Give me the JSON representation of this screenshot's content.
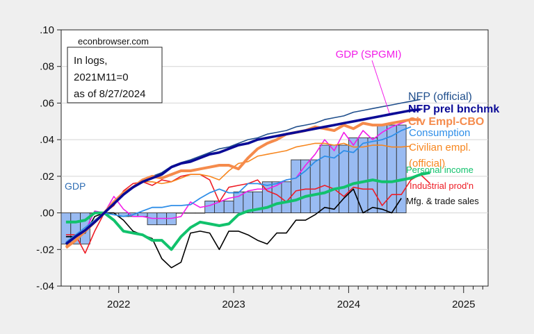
{
  "chart_data": {
    "type": "line",
    "title": "",
    "xlabel": "",
    "ylabel": "",
    "ylim": [
      -0.04,
      0.1
    ],
    "xlim": [
      "2021-07",
      "2025-03"
    ],
    "grid": true,
    "y_ticks": [
      ".10",
      ".08",
      ".06",
      ".04",
      ".02",
      ".00",
      "-.02",
      "-.04"
    ],
    "y_tick_values": [
      0.1,
      0.08,
      0.06,
      0.04,
      0.02,
      0.0,
      -0.02,
      -0.04
    ],
    "x_ticks": [
      "2022",
      "2023",
      "2024",
      "2025"
    ],
    "x_tick_months": [
      6,
      18,
      30,
      42
    ],
    "source_note": "econbrowser.com",
    "annotation_lines": [
      "In logs,",
      "2021M11=0",
      "as of 8/27/2024"
    ],
    "x_start": "2021M07",
    "bars": {
      "name": "GDP",
      "color": "#99bbf2",
      "label_color": "#2e6db4",
      "values": [
        -0.017,
        -0.017,
        -0.017,
        0,
        0,
        0,
        -0.002,
        -0.002,
        -0.002,
        -0.0065,
        -0.0065,
        -0.0065,
        0,
        0,
        0,
        0.0065,
        0.0065,
        0.0065,
        0.0115,
        0.0115,
        0.0115,
        0.017,
        0.017,
        0.017,
        0.029,
        0.029,
        0.029,
        0.037,
        0.037,
        0.037,
        0.041,
        0.041,
        0.041,
        0.048,
        0.048,
        0.048
      ]
    },
    "series": [
      {
        "name": "NFP (official)",
        "color": "#1f4e8c",
        "width": 1.6,
        "values": [
          -0.017,
          -0.013,
          -0.0095,
          -0.005,
          0,
          0.005,
          0.01,
          0.014,
          0.017,
          0.02,
          0.022,
          0.0255,
          0.0275,
          0.029,
          0.031,
          0.033,
          0.035,
          0.036,
          0.038,
          0.04,
          0.041,
          0.043,
          0.044,
          0.045,
          0.047,
          0.048,
          0.049,
          0.051,
          0.052,
          0.053,
          0.055,
          0.056,
          0.057,
          0.058,
          0.059,
          0.06,
          0.061,
          0.062
        ]
      },
      {
        "name": "NFP prel bnchmk",
        "color": "#0a0a96",
        "width": 3.6,
        "values": [
          -0.017,
          -0.013,
          -0.0095,
          -0.005,
          0,
          0.005,
          0.01,
          0.014,
          0.017,
          0.019,
          0.021,
          0.025,
          0.027,
          0.028,
          0.03,
          0.032,
          0.033,
          0.035,
          0.037,
          0.038,
          0.04,
          0.041,
          0.042,
          0.043,
          0.044,
          0.045,
          0.046,
          0.047,
          0.048,
          0.049,
          0.05,
          0.051,
          0.052,
          0.053,
          0.054,
          0.055,
          0.056,
          0.0565
        ]
      },
      {
        "name": "Civ Empl-CBO",
        "color": "#f58b4c",
        "width": 4,
        "values": [
          -0.019,
          -0.015,
          -0.01,
          -0.005,
          0,
          0.006,
          0.011,
          0.014,
          0.018,
          0.02,
          0.019,
          0.021,
          0.023,
          0.023,
          0.024,
          0.025,
          0.026,
          0.026,
          0.024,
          0.03,
          0.035,
          0.038,
          0.04,
          0.043,
          0.044,
          0.045,
          0.047,
          0.046,
          0.045,
          0.048,
          0.046,
          0.049,
          0.048,
          0.048,
          0.049,
          0.05,
          0.051,
          0.051
        ]
      },
      {
        "name": "Consumption",
        "color": "#2e8ee8",
        "width": 1.8,
        "values": [
          -0.016,
          -0.012,
          -0.008,
          -0.004,
          0,
          -0.001,
          -0.002,
          -0.001,
          0.001,
          0.003,
          0.003,
          0.004,
          0.004,
          0.0045,
          0.008,
          0.011,
          0.013,
          0.011,
          0.011,
          0.016,
          0.016,
          0.015,
          0.016,
          0.018,
          0.019,
          0.023,
          0.028,
          0.031,
          0.03,
          0.034,
          0.033,
          0.038,
          0.039,
          0.04,
          0.042,
          0.045,
          0.047
        ]
      },
      {
        "name": "Civilian empl. (official)",
        "color": "#f7861e",
        "width": 1.6,
        "values": [
          -0.018,
          -0.013,
          -0.009,
          -0.004,
          0,
          0.006,
          0.01,
          0.014,
          0.017,
          0.017,
          0.016,
          0.017,
          0.019,
          0.021,
          0.021,
          0.02,
          0.018,
          0.023,
          0.027,
          0.028,
          0.031,
          0.032,
          0.033,
          0.034,
          0.036,
          0.037,
          0.038,
          0.038,
          0.037,
          0.038,
          0.036,
          0.036,
          0.037,
          0.037,
          0.036,
          0.036,
          0.0365
        ]
      },
      {
        "name": "Personal income",
        "color": "#11c26c",
        "width": 4,
        "values": [
          -0.005,
          -0.005,
          -0.004,
          0.0,
          0,
          -0.004,
          -0.01,
          -0.011,
          -0.012,
          -0.015,
          -0.015,
          -0.02,
          -0.013,
          -0.008,
          -0.005,
          -0.006,
          -0.007,
          -0.006,
          -0.001,
          0.001,
          0.002,
          0.003,
          0.005,
          0.006,
          0.007,
          0.009,
          0.01,
          0.011,
          0.013,
          0.014,
          0.016,
          0.017,
          0.018,
          0.017,
          0.017,
          0.018,
          0.019,
          0.021,
          0.022
        ]
      },
      {
        "name": "Industrial prod'n",
        "color": "#ee1c25",
        "width": 1.6,
        "values": [
          -0.012,
          -0.012,
          -0.022,
          -0.01,
          0,
          0.004,
          0.012,
          0.016,
          0.017,
          0.015,
          0.018,
          0.017,
          0.02,
          0.021,
          0.021,
          0.018,
          0.006,
          0.014,
          0.015,
          0.016,
          0.018,
          0.012,
          0.01,
          0.006,
          0.012,
          0.013,
          0.013,
          0.015,
          0.013,
          0.009,
          0.014,
          0.013,
          0.013,
          0.004,
          0.01,
          0.01,
          0.018,
          0.021,
          0.016
        ]
      },
      {
        "name": "Mfg. & trade sales",
        "color": "#000000",
        "width": 1.6,
        "values": [
          -0.013,
          -0.013,
          -0.011,
          -0.002,
          0,
          0.0,
          -0.004,
          -0.01,
          -0.012,
          -0.014,
          -0.025,
          -0.03,
          -0.027,
          -0.011,
          -0.01,
          -0.011,
          -0.02,
          -0.01,
          -0.01,
          -0.012,
          -0.015,
          -0.017,
          -0.011,
          -0.011,
          -0.004,
          -0.004,
          -0.001,
          0.003,
          0.002,
          0.008,
          0.013,
          0.0,
          0.003,
          0.002,
          0.0,
          0.008
        ]
      },
      {
        "name": "GDP (SPGMI)",
        "color": "#f21ce8",
        "width": 1.6,
        "values": [
          -0.016,
          -0.012,
          -0.01,
          0.001,
          0,
          0.009,
          0.002,
          -0.002,
          -0.002,
          -0.003,
          -0.003,
          -0.003,
          -0.002,
          0.006,
          0.003,
          0.004,
          0.006,
          0.008,
          0.009,
          0.012,
          0.013,
          0.013,
          0.015,
          0.018,
          0.019,
          0.026,
          0.032,
          0.04,
          0.034,
          0.044,
          0.037,
          0.045,
          0.04,
          0.044,
          0.047,
          0.049,
          0.051
        ]
      }
    ],
    "legend_labels": [
      {
        "text": "NFP (official)",
        "color": "#1f4e8c",
        "bold": false
      },
      {
        "text": "NFP prel bnchmk",
        "color": "#0a0a96",
        "bold": true
      },
      {
        "text": "Civ Empl-CBO",
        "color": "#f58b4c",
        "bold": true
      },
      {
        "text": "Consumption",
        "color": "#2e8ee8",
        "bold": false
      },
      {
        "text": "Civilian empl.",
        "color": "#f7861e",
        "bold": false
      },
      {
        "text": "(official)",
        "color": "#f7861e",
        "bold": false
      },
      {
        "text": "Personal income",
        "color": "#11c26c",
        "bold": false
      },
      {
        "text": "Industrial prod'n",
        "color": "#ee1c25",
        "bold": false
      },
      {
        "text": "Mfg. & trade sales",
        "color": "#111111",
        "bold": false
      },
      {
        "text": "GDP (SPGMI)",
        "color": "#f21ce8",
        "bold": false
      },
      {
        "text": "GDP",
        "color": "#2e6db4",
        "bold": false
      }
    ]
  }
}
